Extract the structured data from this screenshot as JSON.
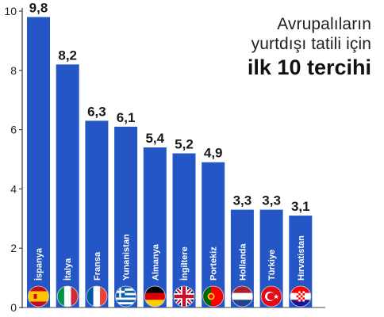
{
  "title": {
    "line1": "Avrupalıların",
    "line2": "yurtdışı tatili için",
    "line3": "ilk 10 tercihi"
  },
  "colors": {
    "bar": "#2457c5",
    "axis": "#444444",
    "value_text": "#1a1a1a",
    "bar_label": "#ffffff"
  },
  "chart_data": {
    "type": "bar",
    "categories": [
      "İspanya",
      "İtalya",
      "Fransa",
      "Yunanistan",
      "Almanya",
      "İngiltere",
      "Portekiz",
      "Hollanda",
      "Türkiye",
      "Hırvatistan"
    ],
    "values": [
      9.8,
      8.2,
      6.3,
      6.1,
      5.4,
      5.2,
      4.9,
      3.3,
      3.3,
      3.1
    ],
    "value_labels": [
      "9,8",
      "8,2",
      "6,3",
      "6,1",
      "5,4",
      "5,2",
      "4,9",
      "3,3",
      "3,3",
      "3,1"
    ],
    "flags": [
      "es-flag-icon",
      "it-flag-icon",
      "fr-flag-icon",
      "gr-flag-icon",
      "de-flag-icon",
      "gb-flag-icon",
      "pt-flag-icon",
      "nl-flag-icon",
      "tr-flag-icon",
      "hr-flag-icon"
    ],
    "ylim": [
      0,
      10
    ],
    "yticks": [
      "0",
      "2",
      "4",
      "6",
      "8",
      "10"
    ],
    "xlabel": "",
    "ylabel": "",
    "grid": false,
    "legend": "none"
  }
}
